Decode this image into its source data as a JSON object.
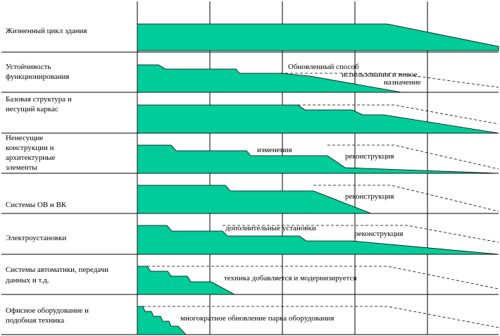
{
  "colors": {
    "band_fill": "#00cc99",
    "grid": "#000000",
    "background": "#ffffff"
  },
  "rows": [
    {
      "id": "life-cycle",
      "label_lines": [
        "Жизненный цикл здания"
      ],
      "annotations": []
    },
    {
      "id": "functional-stability",
      "label_lines": [
        "Устойчивость",
        "функционирования"
      ],
      "annotations": [
        "Обновленный способ",
        "использования и новое",
        "назначение"
      ]
    },
    {
      "id": "base-structure",
      "label_lines": [
        "Базовая структура и",
        "несущий каркас"
      ],
      "annotations": []
    },
    {
      "id": "non-bearing",
      "label_lines": [
        "Ненесущие",
        "конструкции и",
        "архитектурные",
        "элементы"
      ],
      "annotations": [
        "изменения",
        "реконструкция"
      ]
    },
    {
      "id": "hvac-water",
      "label_lines": [
        "Системы ОВ и ВК"
      ],
      "annotations": [
        "реконструкция"
      ]
    },
    {
      "id": "electrical",
      "label_lines": [
        "Электроустановки"
      ],
      "annotations": [
        "дополнительные установки",
        "реконструкция"
      ]
    },
    {
      "id": "automation",
      "label_lines": [
        "Системы автоматики, передачи",
        "данных и т.д."
      ],
      "annotations": [
        "техника добавляется и модернизируется"
      ]
    },
    {
      "id": "office-equipment",
      "label_lines": [
        "Офисное оборудование и",
        "подобная техника"
      ],
      "annotations": [
        "многократное обновление парка оборудования"
      ]
    }
  ]
}
